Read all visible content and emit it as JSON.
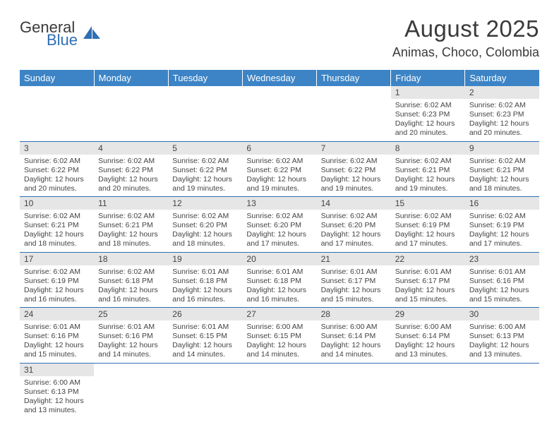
{
  "brand": {
    "general": "General",
    "blue": "Blue"
  },
  "header": {
    "month": "August 2025",
    "location": "Animas, Choco, Colombia"
  },
  "colors": {
    "header_bg": "#3c84c6",
    "header_fg": "#ffffff",
    "daynum_bg": "#e6e6e6",
    "text": "#444444",
    "rule": "#2f6fb3"
  },
  "day_names": [
    "Sunday",
    "Monday",
    "Tuesday",
    "Wednesday",
    "Thursday",
    "Friday",
    "Saturday"
  ],
  "weeks": [
    [
      null,
      null,
      null,
      null,
      null,
      {
        "n": "1",
        "sr": "6:02 AM",
        "ss": "6:23 PM",
        "dl": "12 hours and 20 minutes."
      },
      {
        "n": "2",
        "sr": "6:02 AM",
        "ss": "6:23 PM",
        "dl": "12 hours and 20 minutes."
      }
    ],
    [
      {
        "n": "3",
        "sr": "6:02 AM",
        "ss": "6:22 PM",
        "dl": "12 hours and 20 minutes."
      },
      {
        "n": "4",
        "sr": "6:02 AM",
        "ss": "6:22 PM",
        "dl": "12 hours and 20 minutes."
      },
      {
        "n": "5",
        "sr": "6:02 AM",
        "ss": "6:22 PM",
        "dl": "12 hours and 19 minutes."
      },
      {
        "n": "6",
        "sr": "6:02 AM",
        "ss": "6:22 PM",
        "dl": "12 hours and 19 minutes."
      },
      {
        "n": "7",
        "sr": "6:02 AM",
        "ss": "6:22 PM",
        "dl": "12 hours and 19 minutes."
      },
      {
        "n": "8",
        "sr": "6:02 AM",
        "ss": "6:21 PM",
        "dl": "12 hours and 19 minutes."
      },
      {
        "n": "9",
        "sr": "6:02 AM",
        "ss": "6:21 PM",
        "dl": "12 hours and 18 minutes."
      }
    ],
    [
      {
        "n": "10",
        "sr": "6:02 AM",
        "ss": "6:21 PM",
        "dl": "12 hours and 18 minutes."
      },
      {
        "n": "11",
        "sr": "6:02 AM",
        "ss": "6:21 PM",
        "dl": "12 hours and 18 minutes."
      },
      {
        "n": "12",
        "sr": "6:02 AM",
        "ss": "6:20 PM",
        "dl": "12 hours and 18 minutes."
      },
      {
        "n": "13",
        "sr": "6:02 AM",
        "ss": "6:20 PM",
        "dl": "12 hours and 17 minutes."
      },
      {
        "n": "14",
        "sr": "6:02 AM",
        "ss": "6:20 PM",
        "dl": "12 hours and 17 minutes."
      },
      {
        "n": "15",
        "sr": "6:02 AM",
        "ss": "6:19 PM",
        "dl": "12 hours and 17 minutes."
      },
      {
        "n": "16",
        "sr": "6:02 AM",
        "ss": "6:19 PM",
        "dl": "12 hours and 17 minutes."
      }
    ],
    [
      {
        "n": "17",
        "sr": "6:02 AM",
        "ss": "6:19 PM",
        "dl": "12 hours and 16 minutes."
      },
      {
        "n": "18",
        "sr": "6:02 AM",
        "ss": "6:18 PM",
        "dl": "12 hours and 16 minutes."
      },
      {
        "n": "19",
        "sr": "6:01 AM",
        "ss": "6:18 PM",
        "dl": "12 hours and 16 minutes."
      },
      {
        "n": "20",
        "sr": "6:01 AM",
        "ss": "6:18 PM",
        "dl": "12 hours and 16 minutes."
      },
      {
        "n": "21",
        "sr": "6:01 AM",
        "ss": "6:17 PM",
        "dl": "12 hours and 15 minutes."
      },
      {
        "n": "22",
        "sr": "6:01 AM",
        "ss": "6:17 PM",
        "dl": "12 hours and 15 minutes."
      },
      {
        "n": "23",
        "sr": "6:01 AM",
        "ss": "6:16 PM",
        "dl": "12 hours and 15 minutes."
      }
    ],
    [
      {
        "n": "24",
        "sr": "6:01 AM",
        "ss": "6:16 PM",
        "dl": "12 hours and 15 minutes."
      },
      {
        "n": "25",
        "sr": "6:01 AM",
        "ss": "6:16 PM",
        "dl": "12 hours and 14 minutes."
      },
      {
        "n": "26",
        "sr": "6:01 AM",
        "ss": "6:15 PM",
        "dl": "12 hours and 14 minutes."
      },
      {
        "n": "27",
        "sr": "6:00 AM",
        "ss": "6:15 PM",
        "dl": "12 hours and 14 minutes."
      },
      {
        "n": "28",
        "sr": "6:00 AM",
        "ss": "6:14 PM",
        "dl": "12 hours and 14 minutes."
      },
      {
        "n": "29",
        "sr": "6:00 AM",
        "ss": "6:14 PM",
        "dl": "12 hours and 13 minutes."
      },
      {
        "n": "30",
        "sr": "6:00 AM",
        "ss": "6:13 PM",
        "dl": "12 hours and 13 minutes."
      }
    ],
    [
      {
        "n": "31",
        "sr": "6:00 AM",
        "ss": "6:13 PM",
        "dl": "12 hours and 13 minutes."
      },
      null,
      null,
      null,
      null,
      null,
      null
    ]
  ],
  "labels": {
    "sunrise": "Sunrise:",
    "sunset": "Sunset:",
    "daylight": "Daylight:"
  }
}
